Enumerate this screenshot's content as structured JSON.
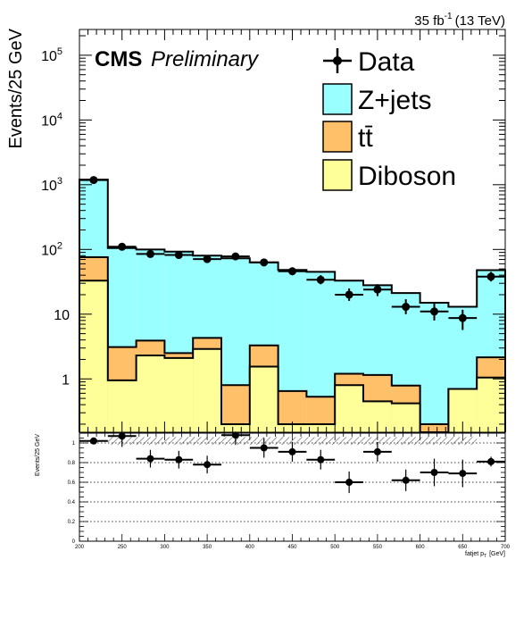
{
  "chart_data": [
    {
      "type": "bar",
      "stacked": true,
      "log_y": true,
      "lumi_label": "35 fb",
      "lumi_exp": "-1",
      "lumi_energy": "(13 TeV)",
      "cms_label": "CMS",
      "prelim_label": "Preliminary",
      "ylabel": "Events/25 GeV",
      "xlim": [
        200,
        700
      ],
      "ylim": [
        0.15,
        250000
      ],
      "bin_edges": [
        200,
        233.33,
        266.67,
        300,
        333.33,
        366.67,
        400,
        433.33,
        466.67,
        500,
        533.33,
        566.67,
        600,
        633.33,
        666.67,
        700
      ],
      "yticks": [
        {
          "value": 1,
          "base": "1",
          "exp": ""
        },
        {
          "value": 10,
          "base": "10",
          "exp": ""
        },
        {
          "value": 100,
          "base": "10",
          "exp": "2"
        },
        {
          "value": 1000,
          "base": "10",
          "exp": "3"
        },
        {
          "value": 10000,
          "base": "10",
          "exp": "4"
        },
        {
          "value": 100000,
          "base": "10",
          "exp": "5"
        }
      ],
      "series": [
        {
          "name": "Diboson",
          "color": "#ffff9a",
          "values": [
            33,
            0.95,
            2.3,
            2.1,
            2.9,
            0.2,
            1.55,
            0.2,
            0.2,
            0.8,
            0.45,
            0.42,
            0.1,
            0.7,
            1.05
          ]
        },
        {
          "name": "tt̄",
          "color": "#ffc069",
          "values": [
            43,
            2.15,
            1.6,
            0.4,
            1.4,
            0.6,
            1.75,
            0.45,
            0.33,
            0.4,
            0.7,
            0.37,
            0.1,
            0.0,
            1.1
          ]
        },
        {
          "name": "Z+jets",
          "color": "#9affff",
          "values": [
            1124,
            102,
            96,
            90,
            76,
            72,
            60,
            47.5,
            44.5,
            31.8,
            26.8,
            20.4,
            14.8,
            12.3,
            45.8
          ]
        }
      ],
      "data": {
        "name": "Data",
        "x": [
          216.7,
          250,
          283.3,
          316.7,
          350,
          383.3,
          416.7,
          450,
          483.3,
          516.7,
          550,
          583.3,
          616.7,
          650,
          683.3
        ],
        "y": [
          1180,
          110,
          85,
          82,
          71,
          78,
          63,
          46,
          34,
          20,
          24,
          13,
          11,
          8.7,
          38
        ],
        "yerr": [
          [
            34,
            34
          ],
          [
            10,
            11
          ],
          [
            9,
            10
          ],
          [
            9,
            10
          ],
          [
            8,
            9
          ],
          [
            9,
            10
          ],
          [
            8,
            9
          ],
          [
            6,
            7
          ],
          [
            5,
            6
          ],
          [
            4,
            5
          ],
          [
            5,
            5
          ],
          [
            3,
            4
          ],
          [
            3,
            4
          ],
          [
            3,
            3
          ],
          [
            6,
            7
          ]
        ]
      },
      "legend": [
        {
          "label": "Data",
          "kind": "marker"
        },
        {
          "label": "Z+jets",
          "kind": "fill",
          "color": "#9affff"
        },
        {
          "label": "tt̄",
          "kind": "fill",
          "color": "#ffc069"
        },
        {
          "label": "Diboson",
          "kind": "fill",
          "color": "#ffff9a"
        }
      ],
      "legend_position": "top-right"
    },
    {
      "type": "scatter",
      "ylabel": "Events/25 GeV",
      "xlabel": "fatjet p",
      "xlabel_sub": "T",
      "xlabel_unit": "[GeV]",
      "xlim": [
        200,
        700
      ],
      "ylim": [
        0,
        1.1
      ],
      "xticks": [
        "200",
        "250",
        "300",
        "350",
        "400",
        "450",
        "500",
        "550",
        "600",
        "650",
        "700"
      ],
      "yticks": [
        "0",
        "0.2",
        "0.4",
        "0.6",
        "0.8",
        "1"
      ],
      "gridlines_y": [
        0.2,
        0.4,
        0.6,
        0.8,
        1.0
      ],
      "x": [
        216.7,
        250,
        283.3,
        316.7,
        350,
        383.3,
        416.7,
        450,
        483.3,
        516.7,
        550,
        583.3,
        616.7,
        650,
        683.3
      ],
      "y": [
        1.02,
        1.07,
        0.84,
        0.83,
        0.78,
        1.08,
        0.95,
        0.91,
        0.83,
        0.6,
        0.91,
        0.62,
        0.7,
        0.69,
        0.81
      ],
      "yerr": [
        0.03,
        0.11,
        0.09,
        0.09,
        0.09,
        0.1,
        0.1,
        0.1,
        0.1,
        0.11,
        0.1,
        0.11,
        0.14,
        0.14,
        0.05
      ],
      "band": {
        "low": 0.98,
        "high": 1.06,
        "x_range": [
          233.33,
          666.67
        ]
      }
    }
  ]
}
